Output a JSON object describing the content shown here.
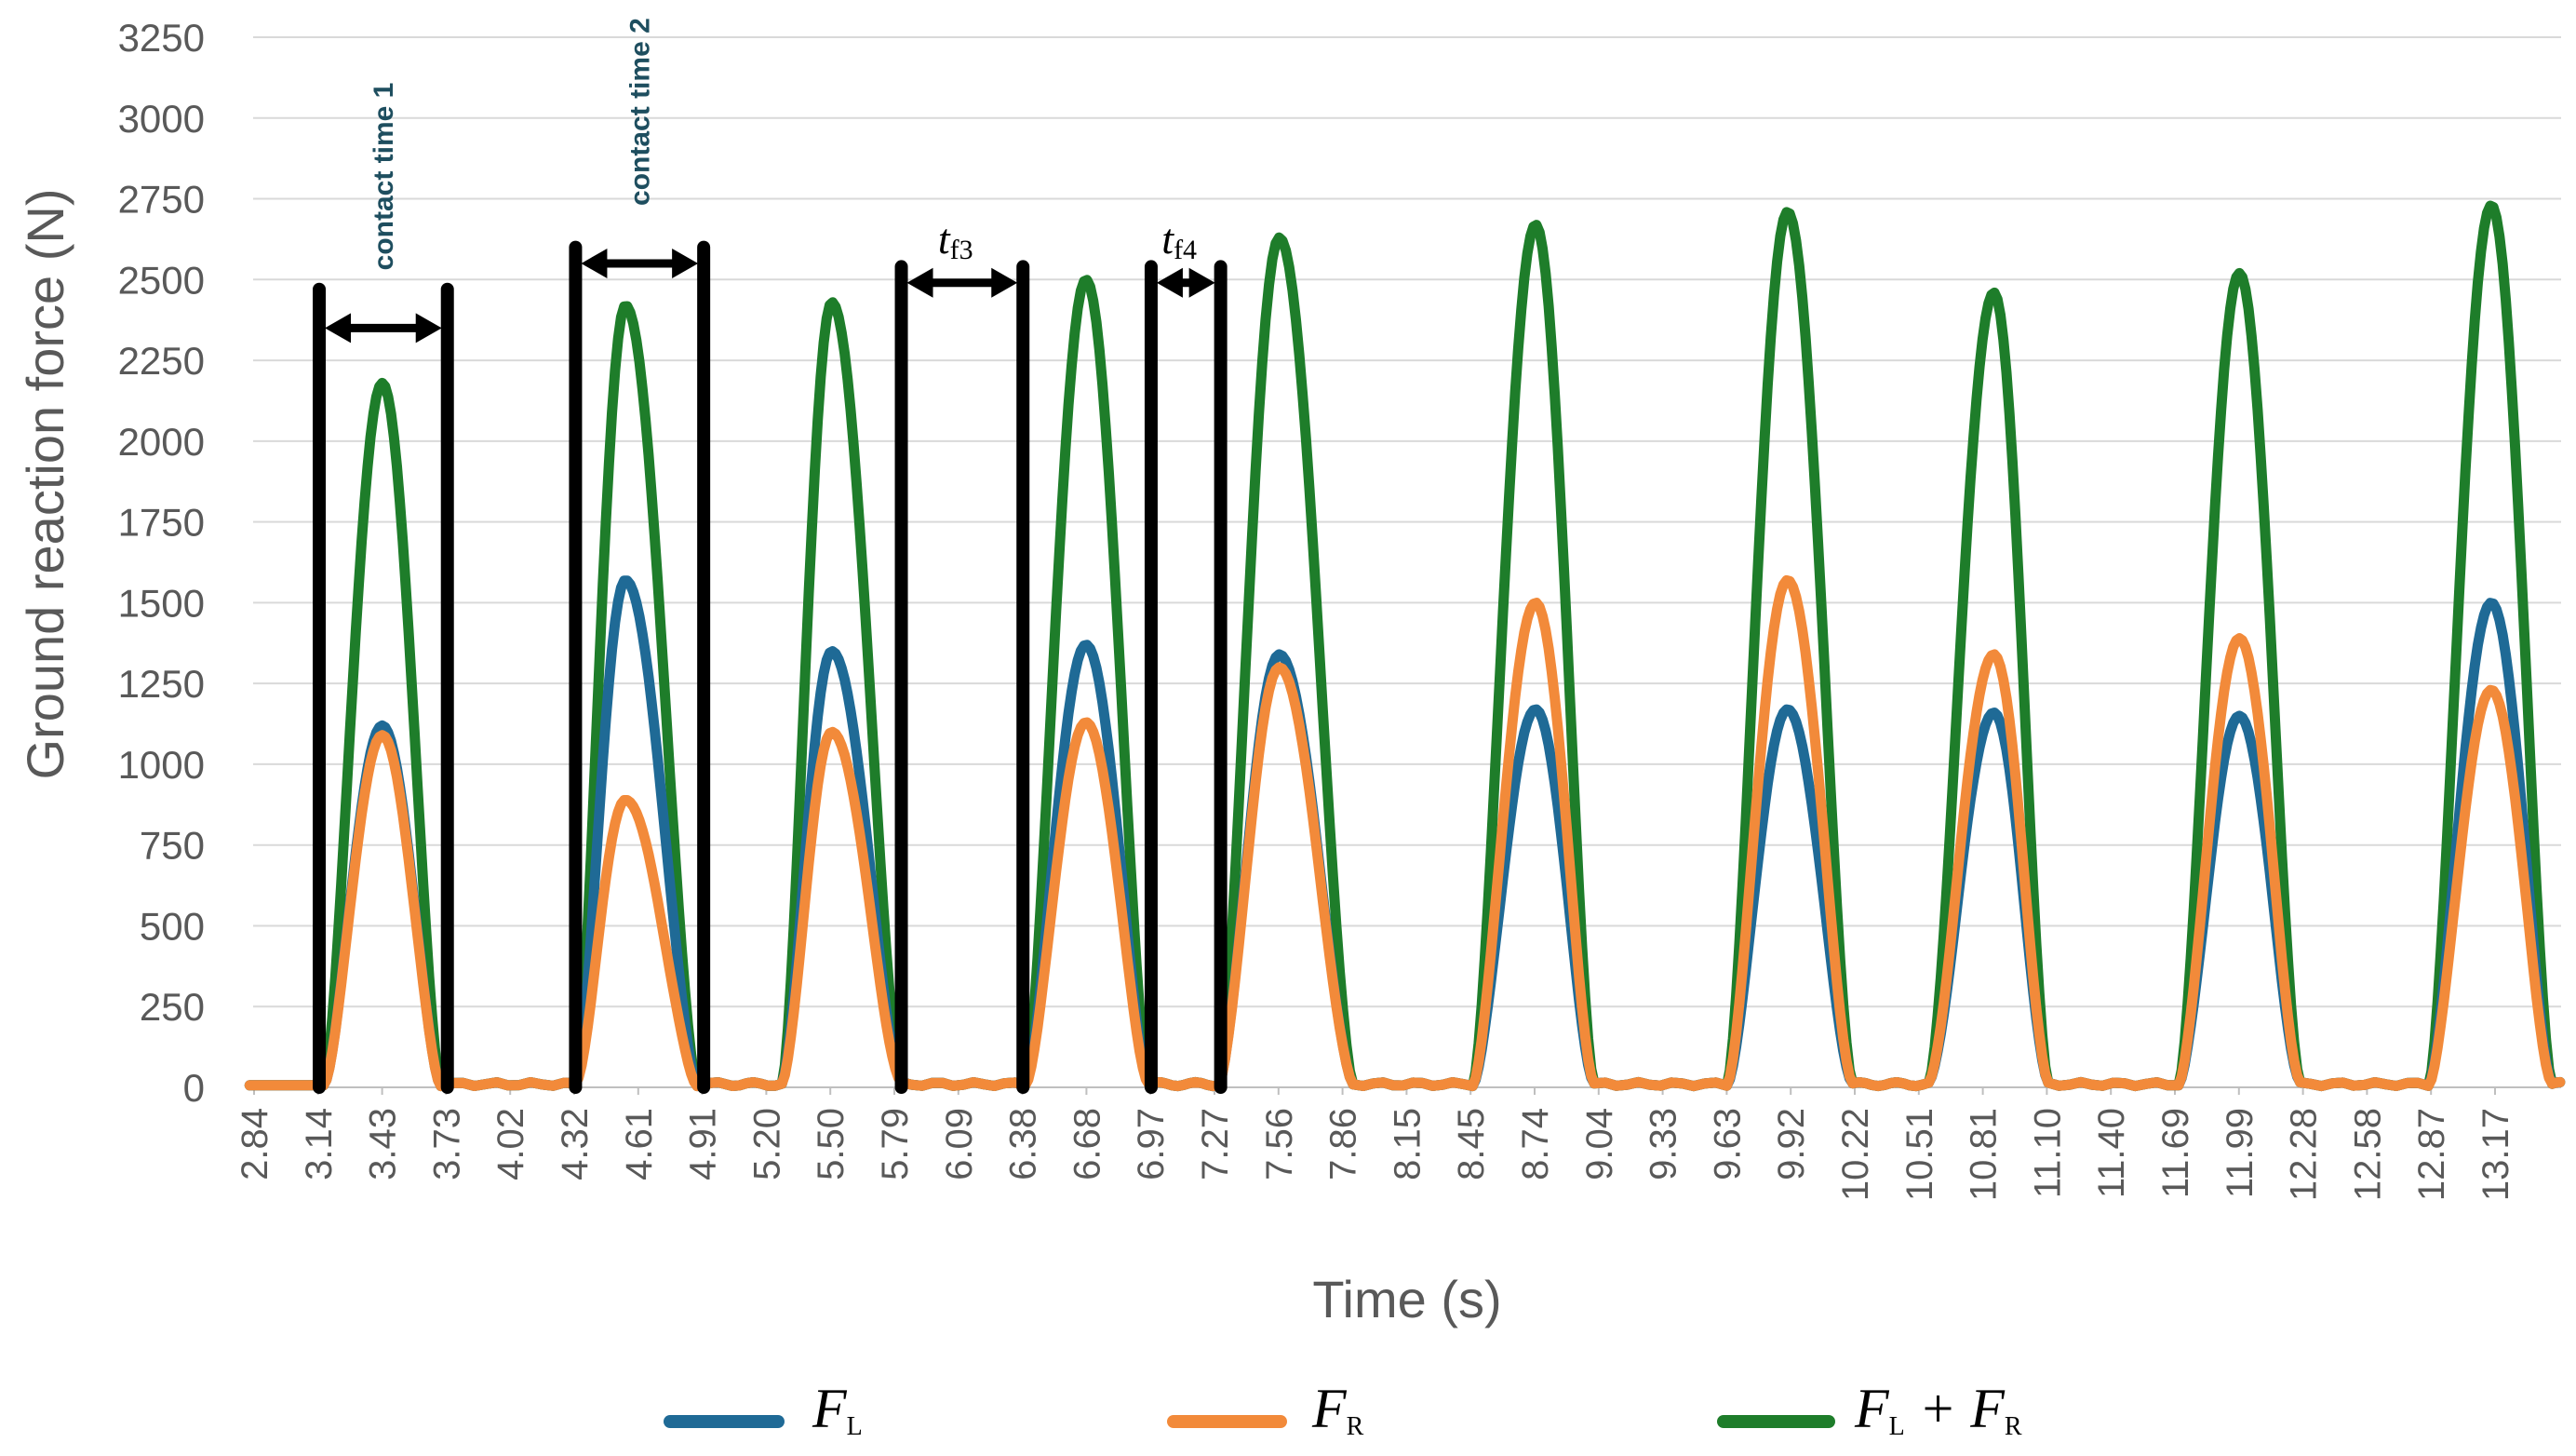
{
  "chart_data": {
    "type": "line",
    "title": "",
    "xlabel": "Time (s)",
    "ylabel": "Ground reaction force (N)",
    "ylim": [
      0,
      3250
    ],
    "xlim": [
      2.84,
      13.46
    ],
    "yticks": [
      0,
      250,
      500,
      750,
      1000,
      1250,
      1500,
      1750,
      2000,
      2250,
      2500,
      2750,
      3000,
      3250
    ],
    "ytick_labels": [
      "0",
      "250",
      "500",
      "750",
      "1000",
      "1250",
      "1500",
      "1750",
      "2000",
      "2250",
      "2500",
      "2750",
      "3000",
      "3250"
    ],
    "xtick_labels": [
      "2.84",
      "3.14",
      "3.43",
      "3.73",
      "4.02",
      "4.32",
      "4.61",
      "4.91",
      "5.20",
      "5.50",
      "5.79",
      "6.09",
      "6.38",
      "6.68",
      "6.97",
      "7.27",
      "7.56",
      "7.86",
      "8.15",
      "8.45",
      "8.74",
      "9.04",
      "9.33",
      "9.63",
      "9.92",
      "10.22",
      "10.51",
      "10.81",
      "11.10",
      "11.40",
      "11.69",
      "11.99",
      "12.28",
      "12.58",
      "12.87",
      "13.17"
    ],
    "grid": true,
    "legend_position": "bottom",
    "contact_phases": [
      {
        "start": 3.16,
        "end": 3.7,
        "peak_time": 3.43,
        "FL": 1120,
        "FR": 1090,
        "FLR": 2180
      },
      {
        "start": 4.32,
        "end": 4.88,
        "peak_time": 4.55,
        "FL": 1570,
        "FR": 890,
        "FLR": 2420
      },
      {
        "start": 5.27,
        "end": 5.82,
        "peak_time": 5.5,
        "FL": 1350,
        "FR": 1100,
        "FLR": 2430
      },
      {
        "start": 6.39,
        "end": 6.96,
        "peak_time": 6.67,
        "FL": 1370,
        "FR": 1130,
        "FLR": 2500
      },
      {
        "start": 7.28,
        "end": 7.9,
        "peak_time": 7.56,
        "FL": 1340,
        "FR": 1300,
        "FLR": 2630
      },
      {
        "start": 8.45,
        "end": 9.01,
        "peak_time": 8.74,
        "FL": 1170,
        "FR": 1500,
        "FLR": 2670
      },
      {
        "start": 9.62,
        "end": 10.2,
        "peak_time": 9.9,
        "FL": 1170,
        "FR": 1570,
        "FLR": 2710
      },
      {
        "start": 10.55,
        "end": 11.1,
        "peak_time": 10.85,
        "FL": 1160,
        "FR": 1340,
        "FLR": 2460
      },
      {
        "start": 11.7,
        "end": 12.26,
        "peak_time": 11.98,
        "FL": 1150,
        "FR": 1390,
        "FLR": 2520
      },
      {
        "start": 12.85,
        "end": 13.42,
        "peak_time": 13.14,
        "FL": 1500,
        "FR": 1230,
        "FLR": 2730
      }
    ],
    "series": [
      {
        "name": "F_L",
        "label_main": "F",
        "label_sub": "L",
        "color": "#1f6a96"
      },
      {
        "name": "F_R",
        "label_main": "F",
        "label_sub": "R",
        "color": "#f28a3a"
      },
      {
        "name": "F_L+F_R",
        "label_main": "F",
        "label_sub": "L",
        "label_plus": " + ",
        "label_main2": "F",
        "label_sub2": "R",
        "color": "#1e7d2a"
      }
    ],
    "annotations": [
      {
        "type": "bracket",
        "label": "contact time 1",
        "start": 3.14,
        "end": 3.73,
        "top": 2470,
        "arrow_y": 2350
      },
      {
        "type": "bracket",
        "label": "contact time 2",
        "start": 4.32,
        "end": 4.91,
        "top": 2600,
        "arrow_y": 2550
      },
      {
        "type": "bracket",
        "label_main": "t",
        "label_sub": "f3",
        "start": 5.82,
        "end": 6.38,
        "top": 2540,
        "arrow_y": 2490
      },
      {
        "type": "bracket",
        "label_main": "t",
        "label_sub": "f4",
        "start": 6.97,
        "end": 7.29,
        "top": 2540,
        "arrow_y": 2490
      }
    ]
  }
}
